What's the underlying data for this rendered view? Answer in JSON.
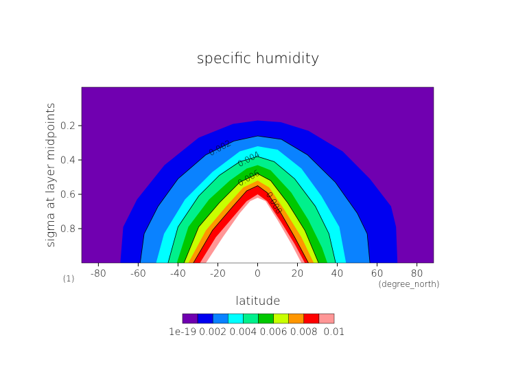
{
  "chart_data": {
    "type": "contour",
    "title": "specific humidity",
    "xlabel": "latitude",
    "ylabel": "sigma at layer midpoints",
    "xunit": "(degree_north)",
    "yunit": "(1)",
    "xlim": [
      -88.4,
      88.4
    ],
    "ylim": [
      1.0,
      -0.024
    ],
    "xticks": [
      -80,
      -60,
      -40,
      -20,
      0,
      20,
      40,
      60,
      80
    ],
    "yticks": [
      0.2,
      0.4,
      0.6,
      0.8
    ],
    "levels": [
      1e-19,
      0.001,
      0.002,
      0.003,
      0.004,
      0.005,
      0.006,
      0.007,
      0.008,
      0.009,
      0.01
    ],
    "colors": [
      "#7000b0",
      "#0000f0",
      "#0a82ff",
      "#00ffff",
      "#00f08c",
      "#00c800",
      "#c8ff00",
      "#ff9600",
      "#ff0000",
      "#ff9696",
      "#ffffff"
    ],
    "contours": [
      {
        "lat": [
          -69,
          -67.5,
          -60.6,
          -46.8,
          -29.6,
          -12.4,
          0,
          11.7,
          25.5,
          42.7,
          56.4,
          67,
          69.5,
          70.2
        ],
        "sigma": [
          1.0,
          0.79,
          0.63,
          0.43,
          0.27,
          0.19,
          0.17,
          0.18,
          0.23,
          0.35,
          0.51,
          0.67,
          0.79,
          1.0
        ]
      },
      {
        "lat": [
          -59,
          -57,
          -50,
          -40,
          -26,
          -12,
          0,
          12,
          25,
          39,
          50,
          55,
          56.4
        ],
        "sigma": [
          1.0,
          0.83,
          0.67,
          0.51,
          0.37,
          0.29,
          0.26,
          0.28,
          0.37,
          0.53,
          0.71,
          0.83,
          1.0
        ]
      },
      {
        "lat": [
          -51,
          -47,
          -36.5,
          -22.7,
          -9,
          0,
          10,
          22,
          32,
          41,
          44.4
        ],
        "sigma": [
          1.0,
          0.83,
          0.63,
          0.47,
          0.35,
          0.32,
          0.34,
          0.45,
          0.61,
          0.79,
          1.0
        ]
      },
      {
        "lat": [
          -45,
          -40,
          -29.6,
          -19.3,
          -9,
          0,
          8.3,
          18.6,
          29,
          35.8,
          39.2
        ],
        "sigma": [
          1.0,
          0.79,
          0.61,
          0.49,
          0.41,
          0.38,
          0.41,
          0.51,
          0.67,
          0.83,
          1.0
        ]
      },
      {
        "lat": [
          -40.6,
          -34.8,
          -24.4,
          -14,
          -5.5,
          0,
          6.5,
          16.9,
          25.5,
          32.3,
          35
        ],
        "sigma": [
          1.0,
          0.79,
          0.63,
          0.52,
          0.45,
          0.43,
          0.46,
          0.59,
          0.75,
          0.91,
          1.0
        ]
      },
      {
        "lat": [
          -37,
          -29.6,
          -19.3,
          -9,
          0,
          6.5,
          15.1,
          23.7,
          30.6
        ],
        "sigma": [
          1.0,
          0.79,
          0.65,
          0.53,
          0.48,
          0.52,
          0.65,
          0.81,
          1.0
        ]
      },
      {
        "lat": [
          -34.8,
          -26,
          -15.8,
          -7.2,
          0,
          5.8,
          13.4,
          22,
          28.2
        ],
        "sigma": [
          1.0,
          0.81,
          0.67,
          0.56,
          0.52,
          0.56,
          0.69,
          0.85,
          1.0
        ]
      },
      {
        "lat": [
          -32.3,
          -22.7,
          -12.4,
          -5.5,
          0,
          4.8,
          11.7,
          18.6,
          25.5
        ],
        "sigma": [
          1.0,
          0.81,
          0.67,
          0.58,
          0.55,
          0.59,
          0.71,
          0.85,
          1.0
        ]
      },
      {
        "lat": [
          -29,
          -21,
          -10.7,
          -5.5,
          0,
          4.8,
          11.7,
          18.6,
          23.7
        ],
        "sigma": [
          1.0,
          0.85,
          0.71,
          0.64,
          0.6,
          0.64,
          0.76,
          0.89,
          1.0
        ]
      },
      {
        "lat": [
          -26,
          -17.5,
          -9,
          -3.8,
          0,
          4,
          10,
          17,
          22
        ],
        "sigma": [
          1.0,
          0.85,
          0.71,
          0.64,
          0.62,
          0.64,
          0.75,
          0.89,
          1.0
        ]
      }
    ]
  }
}
